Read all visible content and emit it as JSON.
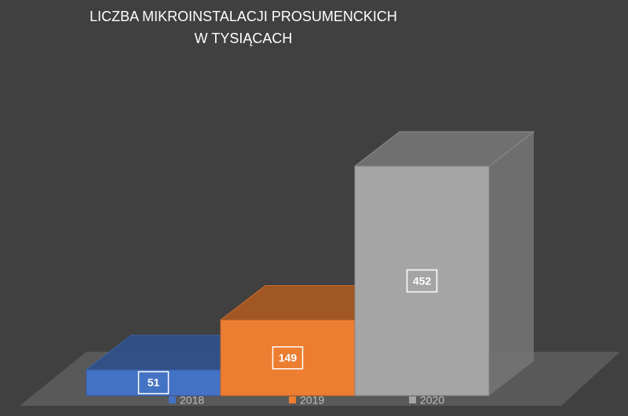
{
  "chart_data": {
    "type": "bar3d",
    "title": [
      "LICZBA MIKROINSTALACJI PROSUMENCKICH",
      "W TYSIĄCACH"
    ],
    "series": [
      {
        "name": "2018",
        "color": "#4472c4",
        "values": [
          51
        ]
      },
      {
        "name": "2019",
        "color": "#ed7d31",
        "values": [
          149
        ]
      },
      {
        "name": "2020",
        "color": "#a5a5a5",
        "values": [
          452
        ]
      }
    ],
    "legend": "bottom"
  }
}
